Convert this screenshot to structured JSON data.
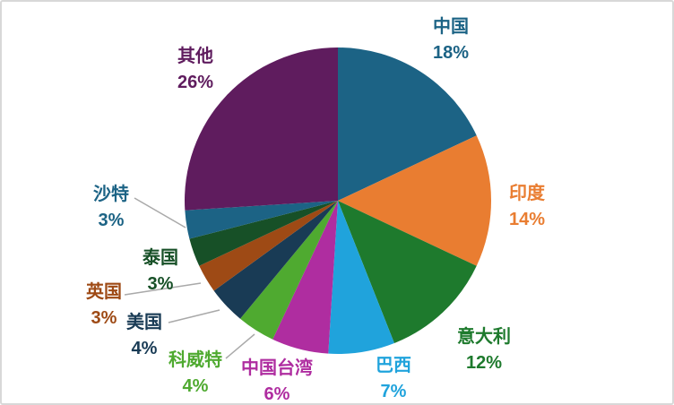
{
  "chart_data": {
    "type": "pie",
    "start_angle_deg": 0,
    "direction": "clockwise",
    "unit": "%",
    "legend_position": "none",
    "grid": false,
    "leader_line_color": "#a9a9a9",
    "background_color": "#ffffff",
    "border_color": "#d8d8d8",
    "slices": [
      {
        "id": "china",
        "label": "中国",
        "value": 18,
        "pct_label": "18%",
        "color": "#1C6385"
      },
      {
        "id": "india",
        "label": "印度",
        "value": 14,
        "pct_label": "14%",
        "color": "#E97D31"
      },
      {
        "id": "italy",
        "label": "意大利",
        "value": 12,
        "pct_label": "12%",
        "color": "#1E7A2D"
      },
      {
        "id": "brazil",
        "label": "巴西",
        "value": 7,
        "pct_label": "7%",
        "color": "#20A3DC"
      },
      {
        "id": "taiwan-china",
        "label": "中国台湾",
        "value": 6,
        "pct_label": "6%",
        "color": "#AF2DA0"
      },
      {
        "id": "kuwait",
        "label": "科威特",
        "value": 4,
        "pct_label": "4%",
        "color": "#4FAA30"
      },
      {
        "id": "usa",
        "label": "美国",
        "value": 4,
        "pct_label": "4%",
        "color": "#193B55"
      },
      {
        "id": "uk",
        "label": "英国",
        "value": 3,
        "pct_label": "3%",
        "color": "#9E4A15"
      },
      {
        "id": "thailand",
        "label": "泰国",
        "value": 3,
        "pct_label": "3%",
        "color": "#175027"
      },
      {
        "id": "saudi",
        "label": "沙特",
        "value": 3,
        "pct_label": "3%",
        "color": "#1C6385"
      },
      {
        "id": "others",
        "label": "其他",
        "value": 26,
        "pct_label": "26%",
        "color": "#5F1C5E"
      }
    ]
  }
}
